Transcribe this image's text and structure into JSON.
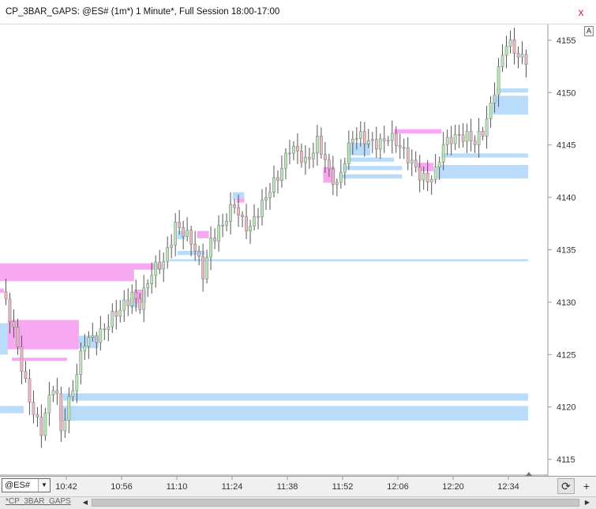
{
  "window": {
    "title": "CP_3BAR_GAPS: @ES# (1m*) 1 Minute*, Full Session 18:00-17:00",
    "close_glyph": "x"
  },
  "toolbar": {
    "auto_label": "A",
    "symbol": "@ES#",
    "dropdown_glyph": "▼",
    "refresh_glyph": "⟳",
    "add_glyph": "+"
  },
  "tabs": {
    "active": "*CP_3BAR_GAPS",
    "left_arrow": "◀",
    "right_arrow": "▶"
  },
  "colors": {
    "up_candle": "#b8e6b8",
    "down_candle": "#eab8c0",
    "wick": "#555555",
    "bull_gap": "#b9dcfb",
    "bear_gap": "#f6a8f0",
    "axis": "#999999"
  },
  "chart_data": {
    "type": "candlestick",
    "symbol": "@ES#",
    "interval": "1 Minute",
    "y_ticks": [
      4115,
      4120,
      4125,
      4130,
      4135,
      4140,
      4145,
      4150,
      4155
    ],
    "x_ticks": [
      "10:42",
      "10:56",
      "11:10",
      "11:24",
      "11:38",
      "11:52",
      "12:06",
      "12:20",
      "12:34"
    ],
    "ylim": [
      4113.5,
      4156.5
    ],
    "waypoints": [
      [
        0,
        4131
      ],
      [
        3,
        4127
      ],
      [
        5,
        4124
      ],
      [
        7,
        4121
      ],
      [
        9,
        4118.5
      ],
      [
        10,
        4117.5
      ],
      [
        11,
        4119
      ],
      [
        13,
        4122
      ],
      [
        14,
        4121
      ],
      [
        15,
        4118
      ],
      [
        16,
        4119.5
      ],
      [
        19,
        4123
      ],
      [
        21,
        4126
      ],
      [
        24,
        4127
      ],
      [
        27,
        4128
      ],
      [
        30,
        4129
      ],
      [
        33,
        4131
      ],
      [
        35,
        4130
      ],
      [
        38,
        4132.5
      ],
      [
        41,
        4134
      ],
      [
        44,
        4137.5
      ],
      [
        47,
        4136
      ],
      [
        49,
        4135
      ],
      [
        51,
        4133
      ],
      [
        53,
        4136
      ],
      [
        56,
        4137
      ],
      [
        59,
        4139.5
      ],
      [
        61,
        4138
      ],
      [
        63,
        4137
      ],
      [
        66,
        4139
      ],
      [
        68,
        4141
      ],
      [
        71,
        4143
      ],
      [
        73,
        4144.5
      ],
      [
        75,
        4144
      ],
      [
        77,
        4143.5
      ],
      [
        80,
        4145.5
      ],
      [
        81,
        4144.5
      ],
      [
        83,
        4142
      ],
      [
        85,
        4141
      ],
      [
        87,
        4144
      ],
      [
        89,
        4146
      ],
      [
        91,
        4145.5
      ],
      [
        93,
        4145
      ],
      [
        96,
        4145.5
      ],
      [
        98,
        4146
      ],
      [
        100,
        4145
      ],
      [
        102,
        4144
      ],
      [
        104,
        4143.5
      ],
      [
        106,
        4142.5
      ],
      [
        108,
        4141.5
      ],
      [
        110,
        4142
      ],
      [
        112,
        4145
      ],
      [
        114,
        4146
      ],
      [
        116,
        4146
      ],
      [
        118,
        4145.5
      ],
      [
        120,
        4145
      ],
      [
        122,
        4146.5
      ],
      [
        124,
        4149
      ],
      [
        126,
        4152
      ],
      [
        128,
        4154.5
      ],
      [
        130,
        4154
      ],
      [
        132,
        4153.5
      ]
    ],
    "zones": [
      {
        "kind": "bull",
        "from_bar": 43,
        "low": 4133.9,
        "high": 4134.1
      },
      {
        "kind": "bull",
        "from_bar": 16,
        "low": 4120.6,
        "high": 4121.3
      },
      {
        "kind": "bull",
        "from_bar": 15,
        "low": 4118.7,
        "high": 4120.1
      },
      {
        "kind": "bull",
        "from_bar": 0,
        "low": 4119.4,
        "high": 4120.1,
        "to_bar": 6
      },
      {
        "kind": "bull",
        "from_bar": 125,
        "low": 4147.9,
        "high": 4149.7
      },
      {
        "kind": "bull",
        "from_bar": 126,
        "low": 4150.0,
        "high": 4150.4
      },
      {
        "kind": "bull",
        "from_bar": 111,
        "low": 4141.8,
        "high": 4143.1
      },
      {
        "kind": "bull",
        "from_bar": 112,
        "low": 4143.8,
        "high": 4144.2
      },
      {
        "kind": "bull",
        "from_bar": 86,
        "low": 4141.8,
        "high": 4142.2,
        "to_bar": 102
      },
      {
        "kind": "bull",
        "from_bar": 87,
        "low": 4142.6,
        "high": 4143.0,
        "to_bar": 102
      },
      {
        "kind": "bull",
        "from_bar": 88,
        "low": 4143.4,
        "high": 4143.8,
        "to_bar": 100
      },
      {
        "kind": "bull",
        "from_bar": 88,
        "low": 4144.0,
        "high": 4145.2,
        "to_bar": 94
      },
      {
        "kind": "bull",
        "from_bar": 20,
        "low": 4125.6,
        "high": 4126.8,
        "to_bar": 25
      },
      {
        "kind": "bull",
        "from_bar": 0,
        "low": 4125.0,
        "high": 4128.0,
        "to_bar": 2
      },
      {
        "kind": "bull",
        "from_bar": 45,
        "low": 4134.5,
        "high": 4134.9,
        "to_bar": 52
      },
      {
        "kind": "bull",
        "from_bar": 45,
        "low": 4136.0,
        "high": 4136.8,
        "to_bar": 47
      },
      {
        "kind": "bull",
        "from_bar": 33,
        "low": 4129.5,
        "high": 4130.4,
        "to_bar": 35
      },
      {
        "kind": "bull",
        "from_bar": 59,
        "low": 4139.8,
        "high": 4140.5,
        "to_bar": 62
      },
      {
        "kind": "bear",
        "from_bar": 0,
        "low": 4132.0,
        "high": 4133.7,
        "to_bar": 34
      },
      {
        "kind": "bear",
        "from_bar": 34,
        "low": 4133.1,
        "high": 4133.7,
        "to_bar": 41
      },
      {
        "kind": "bear",
        "from_bar": 2,
        "low": 4125.5,
        "high": 4128.3,
        "to_bar": 20
      },
      {
        "kind": "bear",
        "from_bar": 3,
        "low": 4124.4,
        "high": 4124.7,
        "to_bar": 17
      },
      {
        "kind": "bear",
        "from_bar": 0,
        "low": 4130.9,
        "high": 4131.3,
        "to_bar": 1
      },
      {
        "kind": "bear",
        "from_bar": 50,
        "low": 4136.1,
        "high": 4136.8,
        "to_bar": 53
      },
      {
        "kind": "bear",
        "from_bar": 82,
        "low": 4141.4,
        "high": 4142.9,
        "to_bar": 85
      },
      {
        "kind": "bear",
        "from_bar": 100,
        "low": 4146.1,
        "high": 4146.5,
        "to_bar": 112
      },
      {
        "kind": "bear",
        "from_bar": 106,
        "low": 4142.5,
        "high": 4143.3,
        "to_bar": 110
      },
      {
        "kind": "bear",
        "from_bar": 34,
        "low": 4129.9,
        "high": 4131.2,
        "to_bar": 37
      },
      {
        "kind": "bear",
        "from_bar": 60,
        "low": 4139.5,
        "high": 4139.9,
        "to_bar": 62
      }
    ]
  }
}
